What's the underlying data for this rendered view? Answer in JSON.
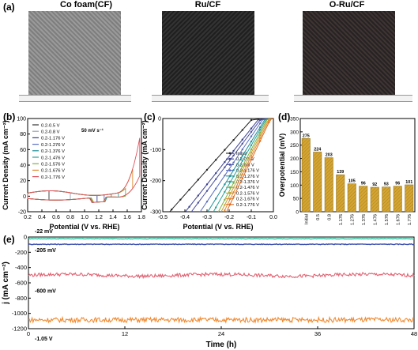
{
  "panels": {
    "a": "(a)",
    "b": "(b)",
    "c": "(c)",
    "d": "(d)",
    "e": "(e)"
  },
  "photos": [
    {
      "title": "Co foam(CF)",
      "color": "#8c8c8c"
    },
    {
      "title": "Ru/CF",
      "color": "#2b2b2b"
    },
    {
      "title": "O-Ru/CF",
      "color": "#383030"
    }
  ],
  "chart_data": [
    {
      "id": "b",
      "type": "line",
      "xlabel": "Potential (V vs. RHE)",
      "ylabel": "Current Density (mA cm⁻²)",
      "xlim": [
        0.2,
        1.8
      ],
      "ylim": [
        -20,
        100
      ],
      "xticks": [
        "0.2",
        "0.4",
        "0.6",
        "0.8",
        "1.0",
        "1.2",
        "1.4",
        "1.6",
        "1.8"
      ],
      "yticks": [
        "-20",
        "0",
        "20",
        "40",
        "60",
        "80",
        "100"
      ],
      "annotation": "50 mV s⁻¹",
      "series": [
        {
          "name": "0.2-0.5 V",
          "color": "#333333",
          "xmax": 0.5
        },
        {
          "name": "0.2-0.8 V",
          "color": "#9aa0b0",
          "xmax": 0.8
        },
        {
          "name": "0.2-1.176 V",
          "color": "#3a3f8f",
          "xmax": 1.176
        },
        {
          "name": "0.2-1.276 V",
          "color": "#5b6fc0",
          "xmax": 1.276
        },
        {
          "name": "0.2-1.376 V",
          "color": "#1f8f9a",
          "xmax": 1.376
        },
        {
          "name": "0.2-1.476 V",
          "color": "#2aa198",
          "xmax": 1.476
        },
        {
          "name": "0.2-1.576 V",
          "color": "#7cb342",
          "xmax": 1.576
        },
        {
          "name": "0.2-1.676 V",
          "color": "#e08a30",
          "xmax": 1.676
        },
        {
          "name": "0.2-1.776 V",
          "color": "#e0505a",
          "xmax": 1.776
        }
      ]
    },
    {
      "id": "c",
      "type": "line",
      "xlabel": "Potential (V vs. RHE)",
      "ylabel": "Current Density (mA cm⁻²)",
      "xlim": [
        -0.5,
        0.0
      ],
      "ylim": [
        -300,
        0
      ],
      "xticks": [
        "-0.5",
        "-0.4",
        "-0.3",
        "-0.2",
        "-0.1",
        "0.0"
      ],
      "yticks": [
        "-300",
        "-200",
        "-100",
        "0"
      ],
      "series": [
        {
          "name": "Initial",
          "color": "#222222",
          "onset": -0.1,
          "slope": 800
        },
        {
          "name": "0.2-0.5 V",
          "color": "#3a3f8f",
          "onset": -0.07,
          "slope": 900
        },
        {
          "name": "0.2-0.8 V",
          "color": "#4a4fa0",
          "onset": -0.06,
          "slope": 950
        },
        {
          "name": "0.2-1.176 V",
          "color": "#5b6fc0",
          "onset": -0.05,
          "slope": 1050
        },
        {
          "name": "0.2-1.276 V",
          "color": "#1f8f9a",
          "onset": -0.04,
          "slope": 1150
        },
        {
          "name": "0.2-1.376 V",
          "color": "#2aa198",
          "onset": -0.035,
          "slope": 1250
        },
        {
          "name": "0.2-1.476 V",
          "color": "#7cb342",
          "onset": -0.03,
          "slope": 1350
        },
        {
          "name": "0.2-1.576 V",
          "color": "#c9a030",
          "onset": -0.025,
          "slope": 1400
        },
        {
          "name": "0.2-1.676 V",
          "color": "#e08a30",
          "onset": -0.02,
          "slope": 1450
        },
        {
          "name": "0.2-1.776 V",
          "color": "#e06a20",
          "onset": -0.015,
          "slope": 1500
        }
      ]
    },
    {
      "id": "d",
      "type": "bar",
      "ylabel": "Overpotential (mV)",
      "ylim": [
        0,
        350
      ],
      "yticks": [
        "0",
        "50",
        "100",
        "150",
        "200",
        "250",
        "300",
        "350"
      ],
      "categories": [
        "Initial",
        "0.5",
        "0.8",
        "1.176",
        "1.276",
        "1.376",
        "1.476",
        "1.576",
        "1.676",
        "1.776"
      ],
      "values": [
        275,
        224,
        203,
        139,
        105,
        96,
        92,
        93,
        96,
        101
      ],
      "bar_color": "#d4a532"
    },
    {
      "id": "e",
      "type": "line",
      "xlabel": "Time (h)",
      "ylabel": "j (mA cm⁻²)",
      "xlim": [
        0,
        48
      ],
      "ylim": [
        -1200,
        0
      ],
      "xticks": [
        "0",
        "12",
        "24",
        "36",
        "48"
      ],
      "yticks": [
        "-1200",
        "-1000",
        "-800",
        "-600",
        "-400",
        "-200",
        "0"
      ],
      "series": [
        {
          "label": "-22 mV",
          "color": "#2ec4a0",
          "level": -22
        },
        {
          "label": "-205 mV",
          "color": "#3a4fb0",
          "level": -95
        },
        {
          "label": "-600 mV",
          "color": "#e06070",
          "level": -500
        },
        {
          "label": "-1.05 V",
          "color": "#f08a30",
          "level": -1085
        }
      ]
    }
  ]
}
